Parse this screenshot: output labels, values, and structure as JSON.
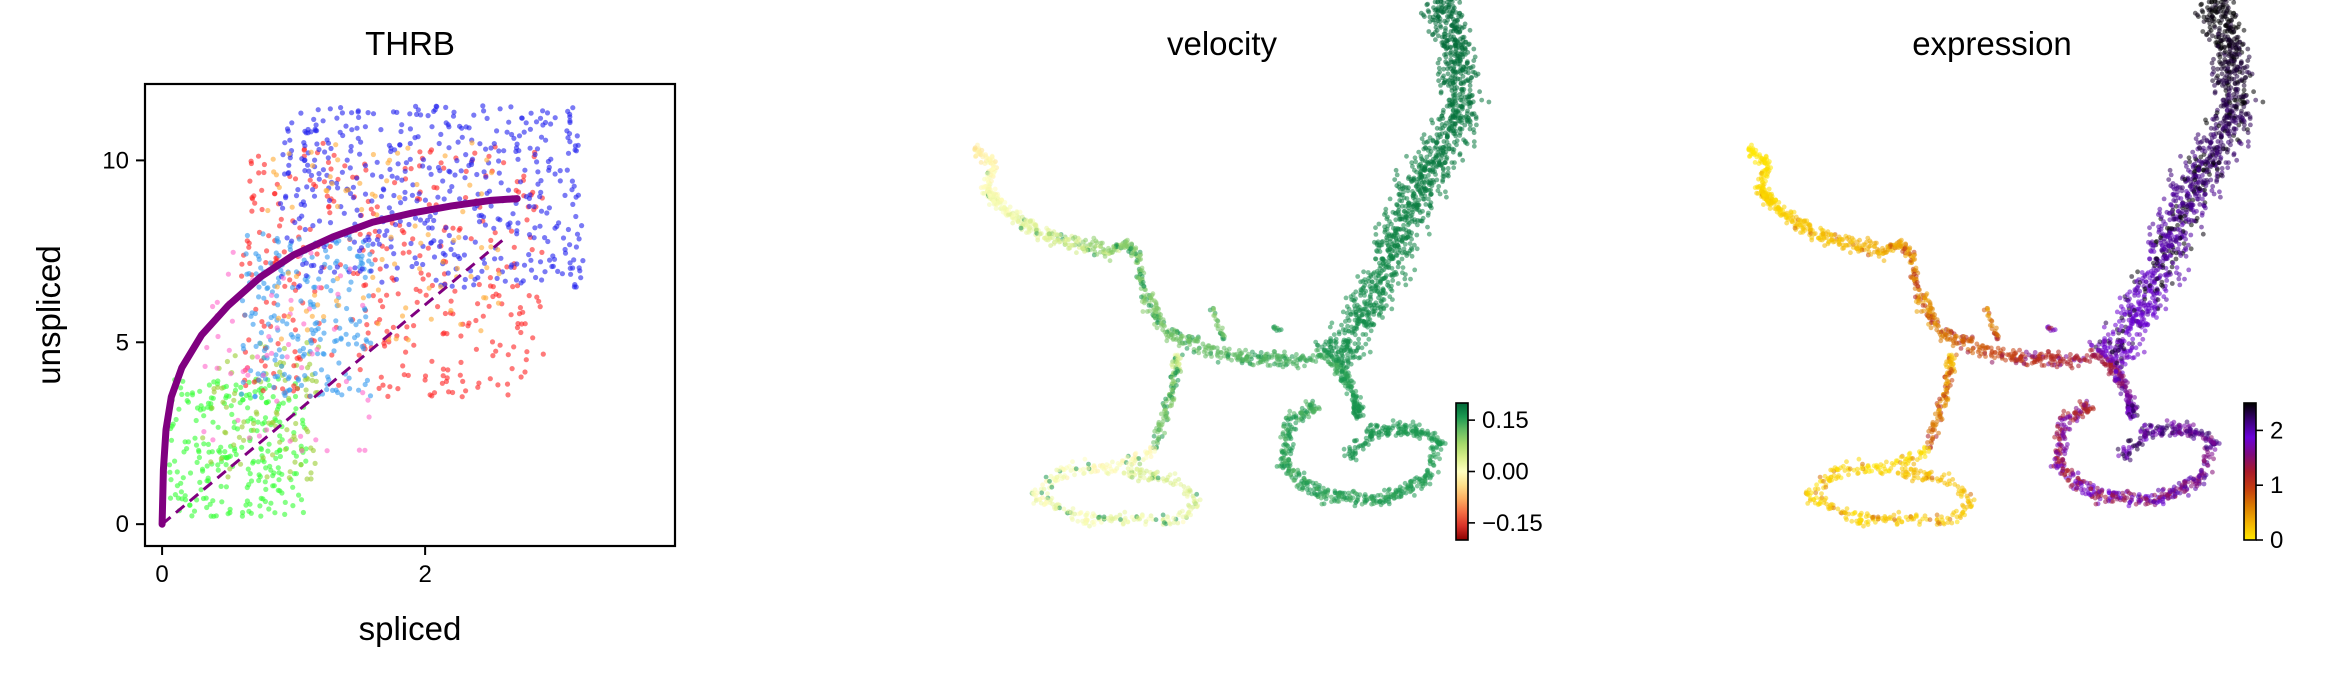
{
  "chart_data": [
    {
      "type": "scatter",
      "title": "THRB",
      "xlabel": "spliced",
      "ylabel": "unspliced",
      "xlim": [
        -0.13,
        3.9
      ],
      "ylim": [
        -0.6,
        12.1
      ],
      "xticks": [
        0,
        2
      ],
      "yticks": [
        0,
        5,
        10
      ],
      "grid": false,
      "legend": "none",
      "fit_curve": {
        "name": "",
        "color": "#800080",
        "x": [
          0.0,
          0.01,
          0.03,
          0.07,
          0.15,
          0.3,
          0.5,
          0.75,
          1.0,
          1.3,
          1.6,
          1.9,
          2.2,
          2.5,
          2.7
        ],
        "y": [
          0.0,
          1.5,
          2.6,
          3.5,
          4.3,
          5.2,
          6.0,
          6.8,
          7.4,
          7.9,
          8.3,
          8.55,
          8.75,
          8.9,
          8.95
        ]
      },
      "steady_state_line": {
        "color": "#800080",
        "style": "dashed",
        "x": [
          0.0,
          2.62
        ],
        "y": [
          0.0,
          7.9
        ]
      },
      "point_groups": [
        {
          "color": "#33ff33",
          "x_range": [
            0.05,
            1.1
          ],
          "y_range": [
            0.2,
            4.0
          ],
          "count": 260
        },
        {
          "color": "#9acd32",
          "x_range": [
            0.3,
            1.2
          ],
          "y_range": [
            1.2,
            5.0
          ],
          "count": 90
        },
        {
          "color": "#ff2222",
          "x_range": [
            0.6,
            2.9
          ],
          "y_range": [
            3.5,
            10.5
          ],
          "count": 360
        },
        {
          "color": "#3399ee",
          "x_range": [
            0.6,
            1.6
          ],
          "y_range": [
            3.5,
            8.0
          ],
          "count": 220
        },
        {
          "color": "#2222ee",
          "x_range": [
            0.9,
            3.2
          ],
          "y_range": [
            6.5,
            11.5
          ],
          "count": 480
        },
        {
          "color": "#ff66cc",
          "x_range": [
            0.3,
            1.6
          ],
          "y_range": [
            2.0,
            7.5
          ],
          "count": 60
        },
        {
          "color": "#ffaa33",
          "x_range": [
            0.8,
            2.6
          ],
          "y_range": [
            5.0,
            10.5
          ],
          "count": 90
        }
      ]
    },
    {
      "type": "scatter",
      "title": "velocity",
      "axes": "off",
      "colormap": [
        "#8b0000",
        "#d73027",
        "#f46d43",
        "#fdae61",
        "#fee08b",
        "#ffffbf",
        "#d9ef8b",
        "#a6d96a",
        "#66bd63",
        "#1a9850",
        "#006837"
      ],
      "colorbar": {
        "min": -0.2,
        "max": 0.2,
        "ticks": [
          0.15,
          0.0,
          -0.15
        ],
        "tick_labels": [
          "0.15",
          "0.00",
          "−0.15"
        ]
      }
    },
    {
      "type": "scatter",
      "title": "expression",
      "axes": "off",
      "colormap": [
        "#ffe800",
        "#f2b200",
        "#d97a00",
        "#c43d10",
        "#a81a2a",
        "#7e0a7e",
        "#6a00d8",
        "#3a0075",
        "#000000"
      ],
      "colorbar": {
        "min": 0,
        "max": 2.5,
        "ticks": [
          2,
          1,
          0
        ],
        "tick_labels": [
          "2",
          "1",
          "0"
        ]
      }
    }
  ]
}
